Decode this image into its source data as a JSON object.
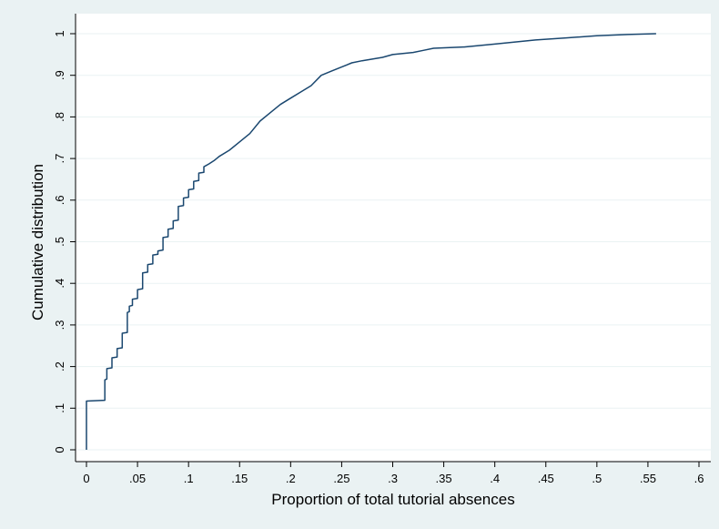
{
  "chart_data": {
    "type": "line",
    "xlabel": "Proportion of total tutorial absences",
    "ylabel": "Cumulative distribution",
    "xlim": [
      0,
      0.6
    ],
    "ylim": [
      0,
      1
    ],
    "x_ticks": [
      {
        "value": 0,
        "label": "0"
      },
      {
        "value": 0.05,
        "label": ".05"
      },
      {
        "value": 0.1,
        "label": ".1"
      },
      {
        "value": 0.15,
        "label": ".15"
      },
      {
        "value": 0.2,
        "label": ".2"
      },
      {
        "value": 0.25,
        "label": ".25"
      },
      {
        "value": 0.3,
        "label": ".3"
      },
      {
        "value": 0.35,
        "label": ".35"
      },
      {
        "value": 0.4,
        "label": ".4"
      },
      {
        "value": 0.45,
        "label": ".45"
      },
      {
        "value": 0.5,
        "label": ".5"
      },
      {
        "value": 0.55,
        "label": ".55"
      },
      {
        "value": 0.6,
        "label": ".6"
      }
    ],
    "y_ticks": [
      {
        "value": 0,
        "label": "0"
      },
      {
        "value": 0.1,
        "label": ".1"
      },
      {
        "value": 0.2,
        "label": ".2"
      },
      {
        "value": 0.3,
        "label": ".3"
      },
      {
        "value": 0.4,
        "label": ".4"
      },
      {
        "value": 0.5,
        "label": ".5"
      },
      {
        "value": 0.6,
        "label": ".6"
      },
      {
        "value": 0.7,
        "label": ".7"
      },
      {
        "value": 0.8,
        "label": ".8"
      },
      {
        "value": 0.9,
        "label": ".9"
      },
      {
        "value": 1,
        "label": "1"
      }
    ],
    "grid": "horizontal",
    "line_color": "#1a476f",
    "series": [
      {
        "x": [
          0,
          0,
          0.018,
          0.018,
          0.02,
          0.02,
          0.025,
          0.025,
          0.03,
          0.03,
          0.035,
          0.035,
          0.04,
          0.04,
          0.042,
          0.042,
          0.045,
          0.045,
          0.05,
          0.05,
          0.055,
          0.055,
          0.06,
          0.06,
          0.065,
          0.065,
          0.07,
          0.07,
          0.075,
          0.075,
          0.08,
          0.08,
          0.085,
          0.085,
          0.09,
          0.09,
          0.095,
          0.095,
          0.1,
          0.1,
          0.105,
          0.105,
          0.11,
          0.11,
          0.115,
          0.115,
          0.12,
          0.125,
          0.13,
          0.14,
          0.15,
          0.16,
          0.17,
          0.18,
          0.19,
          0.2,
          0.21,
          0.22,
          0.23,
          0.24,
          0.25,
          0.26,
          0.27,
          0.29,
          0.3,
          0.32,
          0.33,
          0.34,
          0.37,
          0.4,
          0.42,
          0.44,
          0.47,
          0.5,
          0.53,
          0.558
        ],
        "y": [
          0,
          0.117,
          0.119,
          0.168,
          0.17,
          0.195,
          0.197,
          0.221,
          0.223,
          0.243,
          0.245,
          0.28,
          0.282,
          0.33,
          0.332,
          0.345,
          0.347,
          0.362,
          0.364,
          0.385,
          0.387,
          0.425,
          0.427,
          0.445,
          0.447,
          0.468,
          0.47,
          0.478,
          0.48,
          0.51,
          0.512,
          0.53,
          0.532,
          0.55,
          0.552,
          0.585,
          0.587,
          0.605,
          0.607,
          0.625,
          0.627,
          0.645,
          0.647,
          0.665,
          0.667,
          0.68,
          0.687,
          0.695,
          0.705,
          0.72,
          0.74,
          0.76,
          0.79,
          0.81,
          0.83,
          0.845,
          0.86,
          0.875,
          0.9,
          0.91,
          0.92,
          0.93,
          0.935,
          0.943,
          0.95,
          0.955,
          0.96,
          0.965,
          0.968,
          0.975,
          0.98,
          0.985,
          0.99,
          0.995,
          0.998,
          1.0
        ]
      }
    ]
  }
}
